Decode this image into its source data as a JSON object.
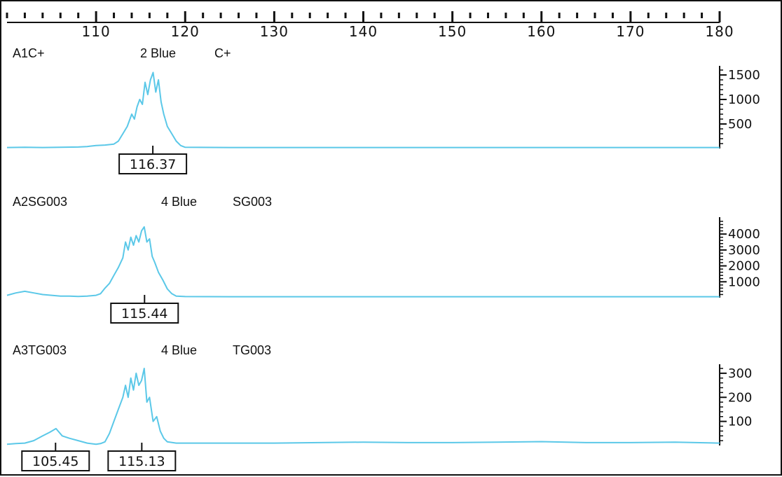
{
  "colors": {
    "trace": "#5bc8e8",
    "axis": "#111111",
    "background": "#ffffff"
  },
  "chart_data": {
    "type": "line",
    "x_axis": {
      "range": [
        100,
        180
      ],
      "major_ticks": [
        110,
        120,
        130,
        140,
        150,
        160,
        170,
        180
      ],
      "tick_labels": [
        "110",
        "120",
        "130",
        "140",
        "150",
        "160",
        "170",
        "180"
      ],
      "minor_tick_step": 2
    },
    "panels": [
      {
        "sample": "A1C+",
        "dye": "2 Blue",
        "marker": "C+",
        "y_ticks": [
          500,
          1000,
          1500
        ],
        "y_tick_labels": [
          "500",
          "1000",
          "1500"
        ],
        "y_max": 1600,
        "peak_labels": [
          {
            "x": 116.37,
            "text": "116.37"
          }
        ],
        "series": [
          {
            "x": [
              100,
              102,
              104,
              106,
              108,
              109,
              110,
              111,
              112,
              112.5,
              113,
              113.5,
              114,
              114.3,
              114.6,
              114.9,
              115.2,
              115.5,
              115.8,
              116.1,
              116.4,
              116.7,
              117,
              117.3,
              117.6,
              118,
              118.5,
              119,
              119.5,
              120,
              125,
              130,
              140,
              150,
              160,
              170,
              180
            ],
            "y": [
              20,
              25,
              20,
              25,
              30,
              40,
              60,
              70,
              90,
              150,
              300,
              450,
              700,
              600,
              850,
              1000,
              900,
              1350,
              1100,
              1400,
              1550,
              1150,
              1400,
              950,
              700,
              450,
              300,
              150,
              60,
              25,
              20,
              20,
              20,
              20,
              20,
              20,
              20
            ]
          }
        ]
      },
      {
        "sample": "A2SG003",
        "dye": "4 Blue",
        "marker": "SG003",
        "y_ticks": [
          1000,
          2000,
          3000,
          4000
        ],
        "y_tick_labels": [
          "1000",
          "2000",
          "3000",
          "4000"
        ],
        "y_max": 4800,
        "peak_labels": [
          {
            "x": 115.44,
            "text": "115.44"
          }
        ],
        "series": [
          {
            "x": [
              100,
              101,
              102,
              103,
              104,
              105,
              106,
              107,
              108,
              109,
              110,
              110.5,
              111,
              111.5,
              112,
              112.5,
              113,
              113.3,
              113.6,
              113.9,
              114.2,
              114.5,
              114.8,
              115.1,
              115.4,
              115.7,
              116,
              116.3,
              116.6,
              117,
              117.5,
              118,
              118.5,
              119,
              120,
              125,
              130,
              140,
              150,
              160,
              170,
              180
            ],
            "y": [
              150,
              300,
              400,
              300,
              200,
              150,
              100,
              100,
              80,
              100,
              150,
              250,
              600,
              900,
              1400,
              1900,
              2500,
              3500,
              3000,
              3800,
              3300,
              3900,
              3500,
              4200,
              4450,
              3500,
              3700,
              2600,
              2200,
              1600,
              1100,
              550,
              250,
              100,
              70,
              60,
              60,
              60,
              60,
              60,
              60,
              60
            ]
          }
        ]
      },
      {
        "sample": "A3TG003",
        "dye": "4 Blue",
        "marker": "TG003",
        "y_ticks": [
          100,
          200,
          300
        ],
        "y_tick_labels": [
          "100",
          "200",
          "300"
        ],
        "y_max": 320,
        "peak_labels": [
          {
            "x": 105.45,
            "text": "105.45"
          },
          {
            "x": 115.13,
            "text": "115.13"
          }
        ],
        "series": [
          {
            "x": [
              100,
              101,
              102,
              103,
              104,
              104.8,
              105.5,
              106.2,
              107,
              108,
              109,
              110,
              110.5,
              111,
              111.5,
              112,
              112.5,
              113,
              113.3,
              113.6,
              113.9,
              114.2,
              114.5,
              114.8,
              115.1,
              115.4,
              115.7,
              116,
              116.4,
              116.8,
              117.2,
              117.6,
              118,
              119,
              120,
              130,
              135,
              140,
              145,
              150,
              155,
              160,
              165,
              170,
              175,
              180
            ],
            "y": [
              5,
              8,
              10,
              20,
              40,
              55,
              70,
              40,
              30,
              20,
              10,
              5,
              8,
              15,
              50,
              100,
              150,
              200,
              250,
              200,
              280,
              230,
              300,
              250,
              270,
              320,
              180,
              200,
              100,
              120,
              60,
              30,
              15,
              10,
              10,
              10,
              12,
              14,
              12,
              12,
              14,
              16,
              12,
              12,
              14,
              10
            ]
          }
        ]
      }
    ]
  }
}
